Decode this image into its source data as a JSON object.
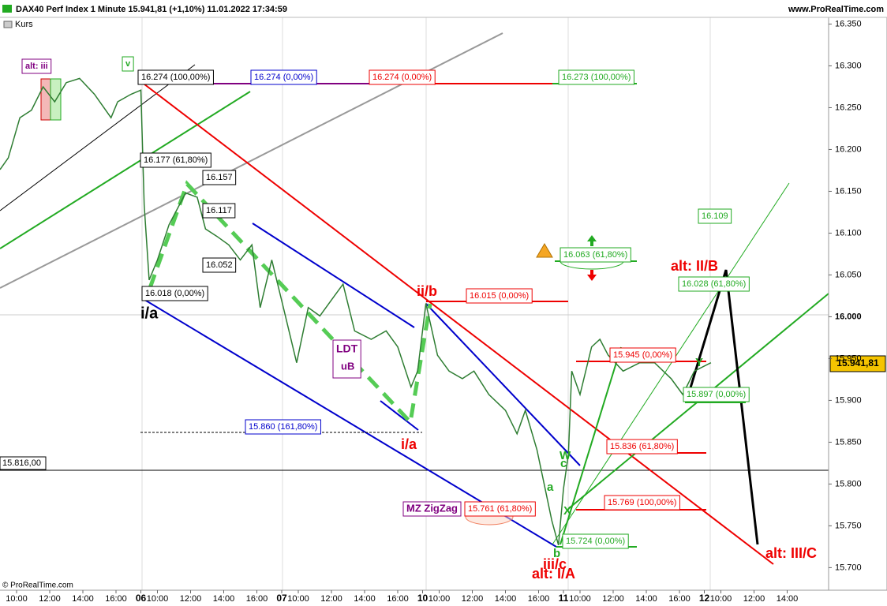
{
  "header": {
    "title": "DAX40 Perf Index 1 Minute 15.941,81 (+1,10%) 11.01.2022 17:34:59",
    "site": "www.ProRealTime.com",
    "copyright": "© ProRealTime.com"
  },
  "chart_data": {
    "type": "line",
    "legend": [
      "Kurs"
    ],
    "last_price_label": "15.941,81",
    "level_label": "15.816,00",
    "series": [
      {
        "name": "Kurs",
        "color": "#2e7d32",
        "x": [
          0,
          0.5,
          1.2,
          1.9,
          2.6,
          3.3,
          4,
          4.8,
          5.7,
          6.7,
          7.1,
          7.9,
          8.5,
          8.7,
          9,
          9.5,
          10.2,
          11.2,
          11.9,
          12.4,
          13.1,
          13.8,
          14.5,
          15.2,
          15.7,
          16.4,
          17.1,
          17.9,
          18.6,
          19.3,
          20,
          20.7,
          21.4,
          22.4,
          23.3,
          24,
          24.8,
          25.2,
          25.7,
          26.4,
          27.1,
          27.9,
          28.6,
          29.5,
          30.5,
          31.2,
          31.7,
          32.4,
          32.9,
          33.3,
          33.7,
          34,
          34.3,
          34.5,
          35,
          35.7,
          36.2,
          36.7,
          37.6,
          38.6,
          39.5,
          40.5,
          41.2,
          41.9,
          42.9
        ],
        "values": [
          16176,
          16190,
          16238,
          16247,
          16275,
          16257,
          16280,
          16285,
          16266,
          16238,
          16257,
          16266,
          16271,
          16134,
          16044,
          16068,
          16110,
          16148,
          16143,
          16105,
          16096,
          16086,
          16068,
          16086,
          16011,
          16068,
          16011,
          15945,
          16011,
          16001,
          16020,
          16039,
          15983,
          15973,
          15983,
          15964,
          15916,
          15935,
          16016,
          15954,
          15935,
          15926,
          15935,
          15907,
          15888,
          15860,
          15888,
          15841,
          15794,
          15756,
          15727,
          15794,
          15836,
          15935,
          15907,
          15964,
          15973,
          15954,
          15935,
          15945,
          15945,
          15926,
          15907,
          15935,
          15945
        ]
      }
    ],
    "xlim": [
      0,
      50
    ],
    "xticks": [
      {
        "value": 1,
        "label": "10:00"
      },
      {
        "value": 3,
        "label": "12:00"
      },
      {
        "value": 5,
        "label": "14:00"
      },
      {
        "value": 7,
        "label": "16:00"
      },
      {
        "value": 8.5,
        "label": "06"
      },
      {
        "value": 9.5,
        "label": "10:00"
      },
      {
        "value": 11.5,
        "label": "12:00"
      },
      {
        "value": 13.5,
        "label": "14:00"
      },
      {
        "value": 15.5,
        "label": "16:00"
      },
      {
        "value": 17,
        "label": "07"
      },
      {
        "value": 18,
        "label": "10:00"
      },
      {
        "value": 20,
        "label": "12:00"
      },
      {
        "value": 22,
        "label": "14:00"
      },
      {
        "value": 24,
        "label": "16:00"
      },
      {
        "value": 25.5,
        "label": "10"
      },
      {
        "value": 26.5,
        "label": "10:00"
      },
      {
        "value": 28.5,
        "label": "12:00"
      },
      {
        "value": 30.5,
        "label": "14:00"
      },
      {
        "value": 32.5,
        "label": "16:00"
      },
      {
        "value": 34,
        "label": "11"
      },
      {
        "value": 35,
        "label": "10:00"
      },
      {
        "value": 37,
        "label": "12:00"
      },
      {
        "value": 39,
        "label": "14:00"
      },
      {
        "value": 41,
        "label": "16:00"
      },
      {
        "value": 42.5,
        "label": "12"
      },
      {
        "value": 43.5,
        "label": "10:00"
      },
      {
        "value": 45.5,
        "label": "12:00"
      },
      {
        "value": 47.5,
        "label": "14:00"
      }
    ],
    "ylim": [
      15673,
      16358
    ],
    "yticks": [
      {
        "value": 16350,
        "label": "16.350"
      },
      {
        "value": 16300,
        "label": "16.300"
      },
      {
        "value": 16250,
        "label": "16.250"
      },
      {
        "value": 16200,
        "label": "16.200"
      },
      {
        "value": 16150,
        "label": "16.150"
      },
      {
        "value": 16100,
        "label": "16.100"
      },
      {
        "value": 16050,
        "label": "16.050"
      },
      {
        "value": 16000,
        "label": "16.000"
      },
      {
        "value": 15950,
        "label": "15.950"
      },
      {
        "value": 15900,
        "label": "15.900"
      },
      {
        "value": 15850,
        "label": "15.850"
      },
      {
        "value": 15800,
        "label": "15.800"
      },
      {
        "value": 15750,
        "label": "15.750"
      },
      {
        "value": 15700,
        "label": "15.700"
      }
    ],
    "annotations": [
      "alt: iii",
      "v",
      "i/a",
      "ii/b",
      "i/a",
      "LDT",
      "uB",
      "MZ ZigZag",
      "a",
      "b",
      "c",
      "W",
      "X",
      "Y",
      "iii/c",
      "alt: I/A",
      "alt: II/B",
      "alt: III/C",
      "16.274 (100,00%)",
      "16.274 (0,00%)",
      "16.274 (0,00%)",
      "16.273 (100,00%)",
      "16.177 (61,80%)",
      "16.157",
      "16.117",
      "16.052",
      "16.018 (0,00%)",
      "15.860 (161,80%)",
      "16.015 (0,00%)",
      "16.063 (61,80%)",
      "16.109",
      "16.028 (61,80%)",
      "15.945 (0,00%)",
      "15.897 (0,00%)",
      "15.836 (61,80%)",
      "15.769 (100,00%)",
      "15.761 (61,80%)",
      "15.724 (0,00%)"
    ]
  }
}
